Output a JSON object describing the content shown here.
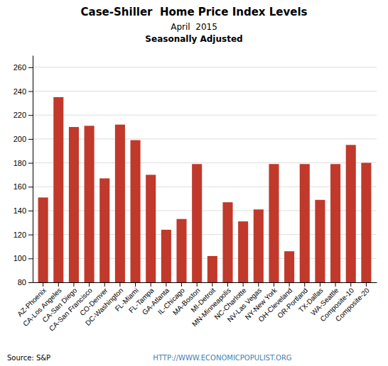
{
  "chart_data": {
    "type": "bar",
    "title": "Case-Shiller  Home Price Index Levels",
    "subtitle": [
      "April  2015",
      "Seasonally Adjusted"
    ],
    "annotations": [
      "Source: S&P",
      "HTTP://WWW.ECONOMICPOPULIST.ORG"
    ],
    "categories": [
      "AZ-Phoenix",
      "CA-Los Angeles",
      "CA-San Diego",
      "CA-San Francisco",
      "CO-Denver",
      "DC-Washington",
      "FL-Miami",
      "FL-Tampa",
      "GA-Atlanta",
      "IL-Chicago",
      "MA-Boston",
      "MI-Detroit",
      "MN-Minneapolis",
      "NC-Charlotte",
      "NV-Las Vegas",
      "NY-New York",
      "OH-Cleveland",
      "OR-Portland",
      "TX-Dallas",
      "WA-Seattle",
      "Composite-10",
      "Composite-20"
    ],
    "values": [
      151,
      235,
      210,
      211,
      167,
      212,
      199,
      170,
      124,
      133,
      179,
      102,
      147,
      131,
      141,
      179,
      106,
      179,
      149,
      179,
      195,
      180
    ],
    "color": "#c0392b",
    "ylim": [
      80,
      270
    ],
    "yticks": [
      80,
      100,
      120,
      140,
      160,
      180,
      200,
      220,
      240,
      260
    ],
    "grid": true
  }
}
